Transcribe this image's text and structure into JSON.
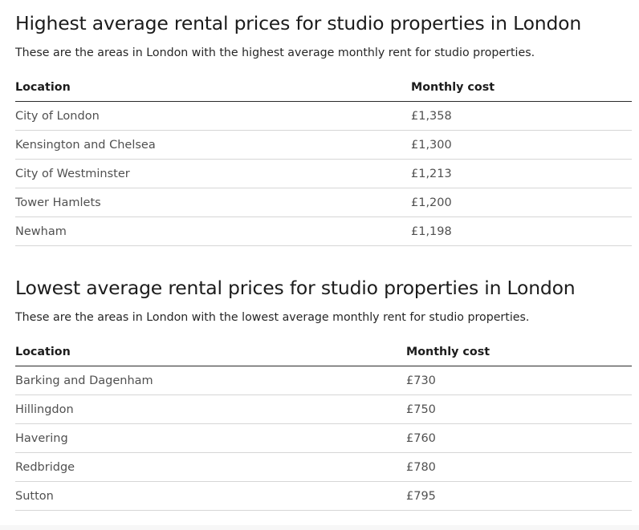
{
  "sections": [
    {
      "title": "Highest average rental prices for studio properties in London",
      "intro": "These are the areas in London with the highest average monthly rent for studio properties.",
      "columns": [
        "Location",
        "Monthly cost"
      ],
      "rows": [
        {
          "location": "City of London",
          "cost": "£1,358"
        },
        {
          "location": "Kensington and Chelsea",
          "cost": "£1,300"
        },
        {
          "location": "City of Westminster",
          "cost": "£1,213"
        },
        {
          "location": "Tower Hamlets",
          "cost": "£1,200"
        },
        {
          "location": "Newham",
          "cost": "£1,198"
        }
      ]
    },
    {
      "title": "Lowest average rental prices for studio properties in London",
      "intro": "These are the areas in London with the lowest average monthly rent for studio properties.",
      "columns": [
        "Location",
        "Monthly cost"
      ],
      "rows": [
        {
          "location": "Barking and Dagenham",
          "cost": "£730"
        },
        {
          "location": "Hillingdon",
          "cost": "£750"
        },
        {
          "location": "Havering",
          "cost": "£760"
        },
        {
          "location": "Redbridge",
          "cost": "£780"
        },
        {
          "location": "Sutton",
          "cost": "£795"
        }
      ]
    }
  ]
}
